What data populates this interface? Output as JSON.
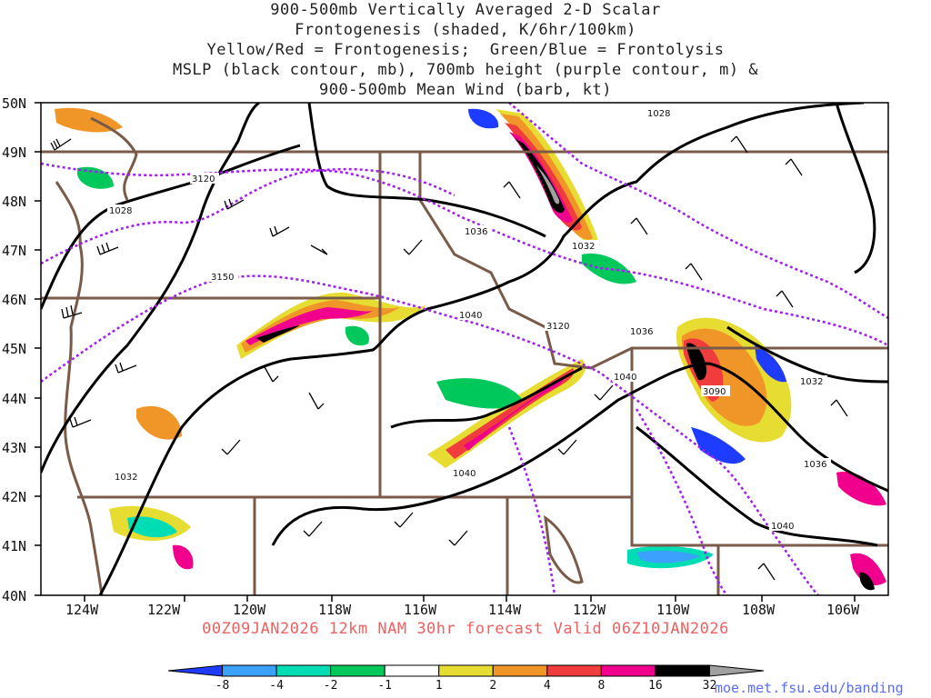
{
  "title": {
    "line1": "900-500mb Vertically Averaged 2-D Scalar",
    "line2": "Frontogenesis (shaded, K/6hr/100km)",
    "line3": "Yellow/Red = Frontogenesis;  Green/Blue = Frontolysis",
    "line4": "MSLP (black contour, mb), 700mb height (purple contour, m) &",
    "line5": "900-500mb Mean Wind (barb, kt)"
  },
  "axes": {
    "lat_labels": [
      "50N",
      "49N",
      "48N",
      "47N",
      "46N",
      "45N",
      "44N",
      "43N",
      "42N",
      "41N",
      "40N"
    ],
    "lon_labels": [
      "124W",
      "122W",
      "120W",
      "118W",
      "116W",
      "114W",
      "112W",
      "110W",
      "108W",
      "106W"
    ],
    "lat_range": [
      40,
      50
    ],
    "lon_range": [
      -125,
      -105
    ]
  },
  "contour_labels": {
    "mslp": [
      "1028",
      "1028",
      "1036",
      "1032",
      "1040",
      "1036",
      "1040",
      "1032",
      "1036",
      "1040",
      "1040",
      "1032"
    ],
    "height": [
      "3120",
      "3150",
      "3120",
      "3090"
    ]
  },
  "colorbar": {
    "labels": [
      "-8",
      "-4",
      "-2",
      "-1",
      "1",
      "2",
      "4",
      "8",
      "16",
      "32"
    ],
    "colors": [
      "#1e3cff",
      "#3ca0ff",
      "#00dcb4",
      "#00c85a",
      "#ffffff",
      "#e6dc32",
      "#f09628",
      "#f03c3c",
      "#f0008c",
      "#000000",
      "#a0a0a0"
    ]
  },
  "colors": {
    "mslp_contour": "#000000",
    "height_contour": "#a020f0",
    "borders": "#7a5a48",
    "valid_text": "#f06060",
    "credit_text": "#5a6cff"
  },
  "footer": {
    "valid": "00Z09JAN2026 12km NAM 30hr forecast Valid 06Z10JAN2026",
    "credit": "moe.met.fsu.edu/banding"
  }
}
